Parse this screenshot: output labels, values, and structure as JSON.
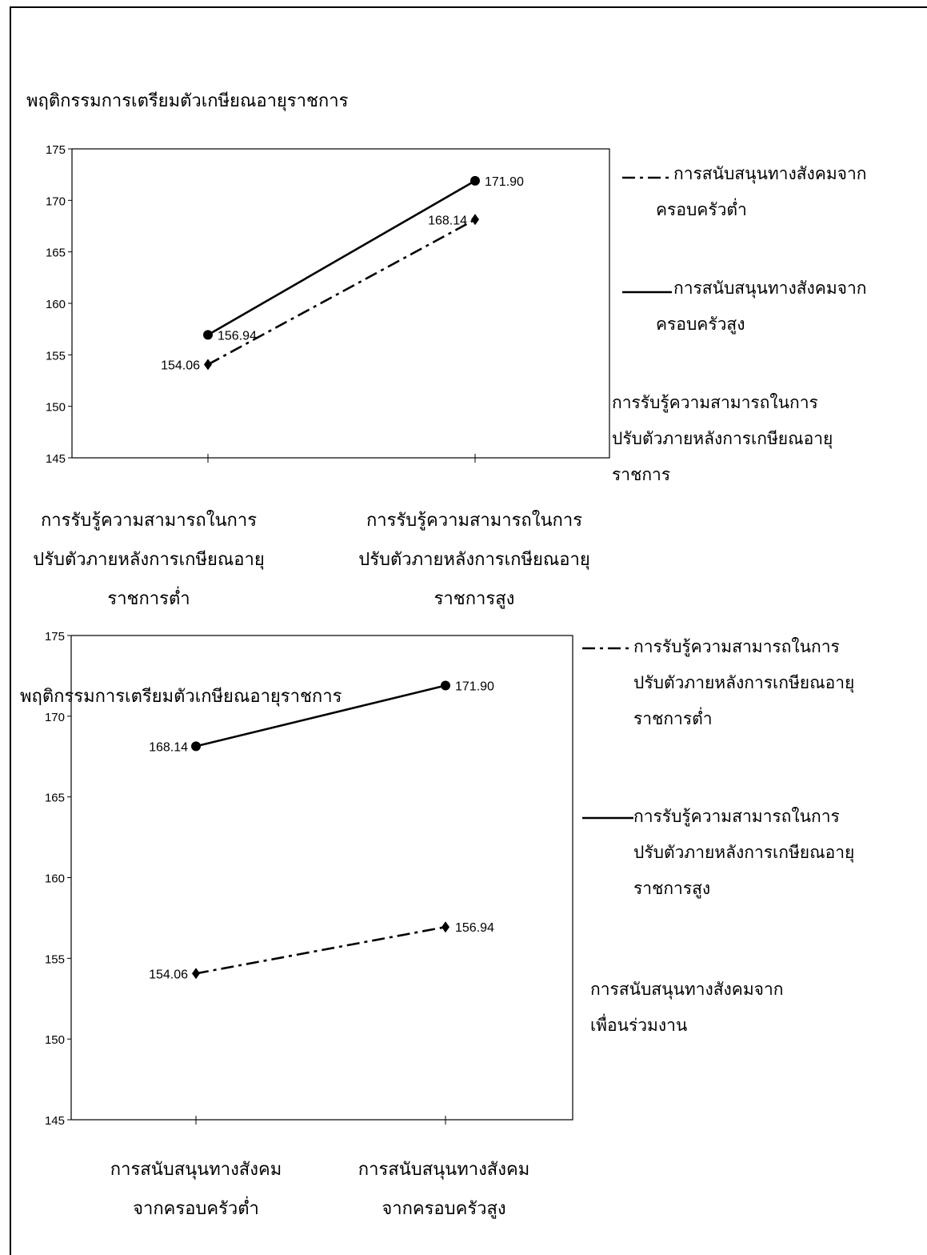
{
  "chart_data": [
    {
      "type": "line",
      "title": "พฤติกรรมการเตรียมตัวเกษียณอายุราชการ",
      "ylim": [
        145,
        175
      ],
      "yticks": [
        "175",
        "170",
        "165",
        "160",
        "155",
        "150",
        "145"
      ],
      "categories": [
        [
          "การรับรู้ความสามารถในการ",
          "ปรับตัวภายหลังการเกษียณอายุ",
          "ราชการต่ำ"
        ],
        [
          "การรับรู้ความสามารถในการ",
          "ปรับตัวภายหลังการเกษียณอายุ",
          "ราชการสูง"
        ]
      ],
      "series": [
        {
          "name": "การสนับสนุนทางสังคมจากครอบครัวต่ำ",
          "legend_lines": [
            "การสนับสนุนทางสังคมจาก",
            "ครอบครัวต่ำ"
          ],
          "style": "dashdot",
          "marker": "diamond",
          "values": [
            154.06,
            168.14
          ],
          "labels": [
            "154.06",
            "168.14"
          ]
        },
        {
          "name": "การสนับสนุนทางสังคมจากครอบครัวสูง",
          "legend_lines": [
            "การสนับสนุนทางสังคมจาก",
            "ครอบครัวสูง"
          ],
          "style": "solid",
          "marker": "circle",
          "values": [
            156.94,
            171.9
          ],
          "labels": [
            "156.94",
            "171.90"
          ]
        }
      ],
      "moderator_lines": [
        "การรับรู้ความสามารถในการ",
        "ปรับตัวภายหลังการเกษียณอายุ",
        "ราชการ"
      ],
      "grid": false,
      "legend": "right"
    },
    {
      "type": "line",
      "title": "พฤติกรรมการเตรียมตัวเกษียณอายุราชการ",
      "ylim": [
        145,
        175
      ],
      "yticks": [
        "175",
        "170",
        "165",
        "160",
        "155",
        "150",
        "145"
      ],
      "categories": [
        [
          "การสนับสนุนทางสังคม",
          "จากครอบครัวต่ำ"
        ],
        [
          "การสนับสนุนทางสังคม",
          "จากครอบครัวสูง"
        ]
      ],
      "series": [
        {
          "name": "การรับรู้ความสามารถในการปรับตัวภายหลังการเกษียณอายุราชการต่ำ",
          "legend_lines": [
            "การรับรู้ความสามารถในการ",
            "ปรับตัวภายหลังการเกษียณอายุ",
            "ราชการต่ำ"
          ],
          "style": "dashdot",
          "marker": "diamond",
          "values": [
            154.06,
            156.94
          ],
          "labels": [
            "154.06",
            "156.94"
          ]
        },
        {
          "name": "การรับรู้ความสามารถในการปรับตัวภายหลังการเกษียณอายุราชการสูง",
          "legend_lines": [
            "การรับรู้ความสามารถในการ",
            "ปรับตัวภายหลังการเกษียณอายุ",
            "ราชการสูง"
          ],
          "style": "solid",
          "marker": "circle",
          "values": [
            168.14,
            171.9
          ],
          "labels": [
            "168.14",
            "171.90"
          ]
        }
      ],
      "moderator_lines": [
        "การสนับสนุนทางสังคมจาก",
        "เพื่อนร่วมงาน"
      ],
      "grid": false,
      "legend": "right"
    }
  ]
}
